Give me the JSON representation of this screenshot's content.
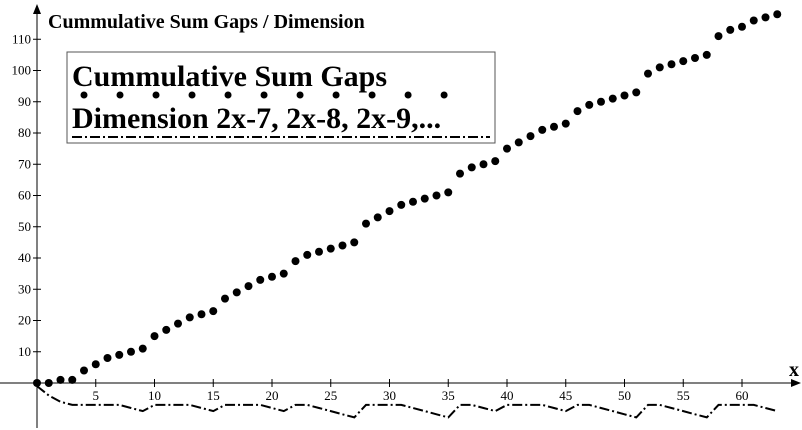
{
  "chart_data": {
    "type": "scatter",
    "title": "Cummulative Sum Gaps / Dimension",
    "xlabel": "x",
    "ylabel": "",
    "xlim": [
      -1,
      64
    ],
    "ylim": [
      -12,
      117
    ],
    "x_ticks": [
      5,
      10,
      15,
      20,
      25,
      30,
      35,
      40,
      45,
      50,
      55,
      60
    ],
    "y_ticks": [
      10,
      20,
      30,
      40,
      50,
      60,
      70,
      80,
      90,
      100,
      110
    ],
    "grid": false,
    "legend": {
      "position": "top-left",
      "lines": [
        "Cummulative Sum Gaps",
        "Dimension 2x-7, 2x-8, 2x-9,..."
      ]
    },
    "series": [
      {
        "style": "dots",
        "x": [
          1,
          2,
          3,
          4,
          5,
          6,
          7,
          8,
          9,
          10,
          11,
          12,
          13,
          14,
          15,
          16,
          17,
          18,
          19,
          20,
          21,
          22,
          23,
          24,
          25,
          26,
          27,
          28,
          29,
          30,
          31,
          32,
          33,
          34,
          35,
          36,
          37,
          38,
          39,
          40,
          41,
          42,
          43,
          44,
          45,
          46,
          47,
          48,
          49,
          50,
          51,
          52,
          53,
          54,
          55,
          56,
          57,
          58,
          59,
          60,
          61,
          62,
          63,
          64
        ],
        "y": [
          0,
          0,
          1,
          1,
          4,
          6,
          8,
          9,
          10,
          11,
          15,
          17,
          19,
          21,
          22,
          23,
          27,
          29,
          31,
          33,
          34,
          35,
          39,
          41,
          42,
          43,
          44,
          45,
          51,
          53,
          55,
          57,
          58,
          59,
          60,
          61,
          67,
          69,
          70,
          71,
          75,
          77,
          79,
          81,
          82,
          83,
          87,
          89,
          90,
          91,
          92,
          93,
          99,
          101,
          102,
          103,
          104,
          105,
          111,
          113,
          114,
          116,
          117,
          118
        ]
      },
      {
        "style": "dash-dot line",
        "x": [
          1,
          2,
          3,
          4,
          5,
          6,
          7,
          8,
          9,
          10,
          11,
          12,
          13,
          14,
          15,
          16,
          17,
          18,
          19,
          20,
          21,
          22,
          23,
          24,
          25,
          26,
          27,
          28,
          29,
          30,
          31,
          32,
          33,
          34,
          35,
          36,
          37,
          38,
          39,
          40,
          41,
          42,
          43,
          44,
          45,
          46,
          47,
          48,
          49,
          50,
          51,
          52,
          53,
          54,
          55,
          56,
          57,
          58,
          59,
          60,
          61,
          62,
          63,
          64
        ],
        "y": [
          -1,
          -4,
          -6,
          -7,
          -7,
          -7,
          -7,
          -7,
          -8,
          -9,
          -7,
          -7,
          -7,
          -7,
          -8,
          -9,
          -7,
          -7,
          -7,
          -7,
          -8,
          -9,
          -7,
          -7,
          -8,
          -9,
          -10,
          -11,
          -7,
          -7,
          -7,
          -7,
          -8,
          -9,
          -10,
          -11,
          -7,
          -7,
          -8,
          -9,
          -7,
          -7,
          -7,
          -7,
          -8,
          -9,
          -7,
          -7,
          -8,
          -9,
          -10,
          -11,
          -7,
          -7,
          -8,
          -9,
          -10,
          -11,
          -7,
          -7,
          -7,
          -7,
          -8,
          -9
        ]
      }
    ]
  }
}
